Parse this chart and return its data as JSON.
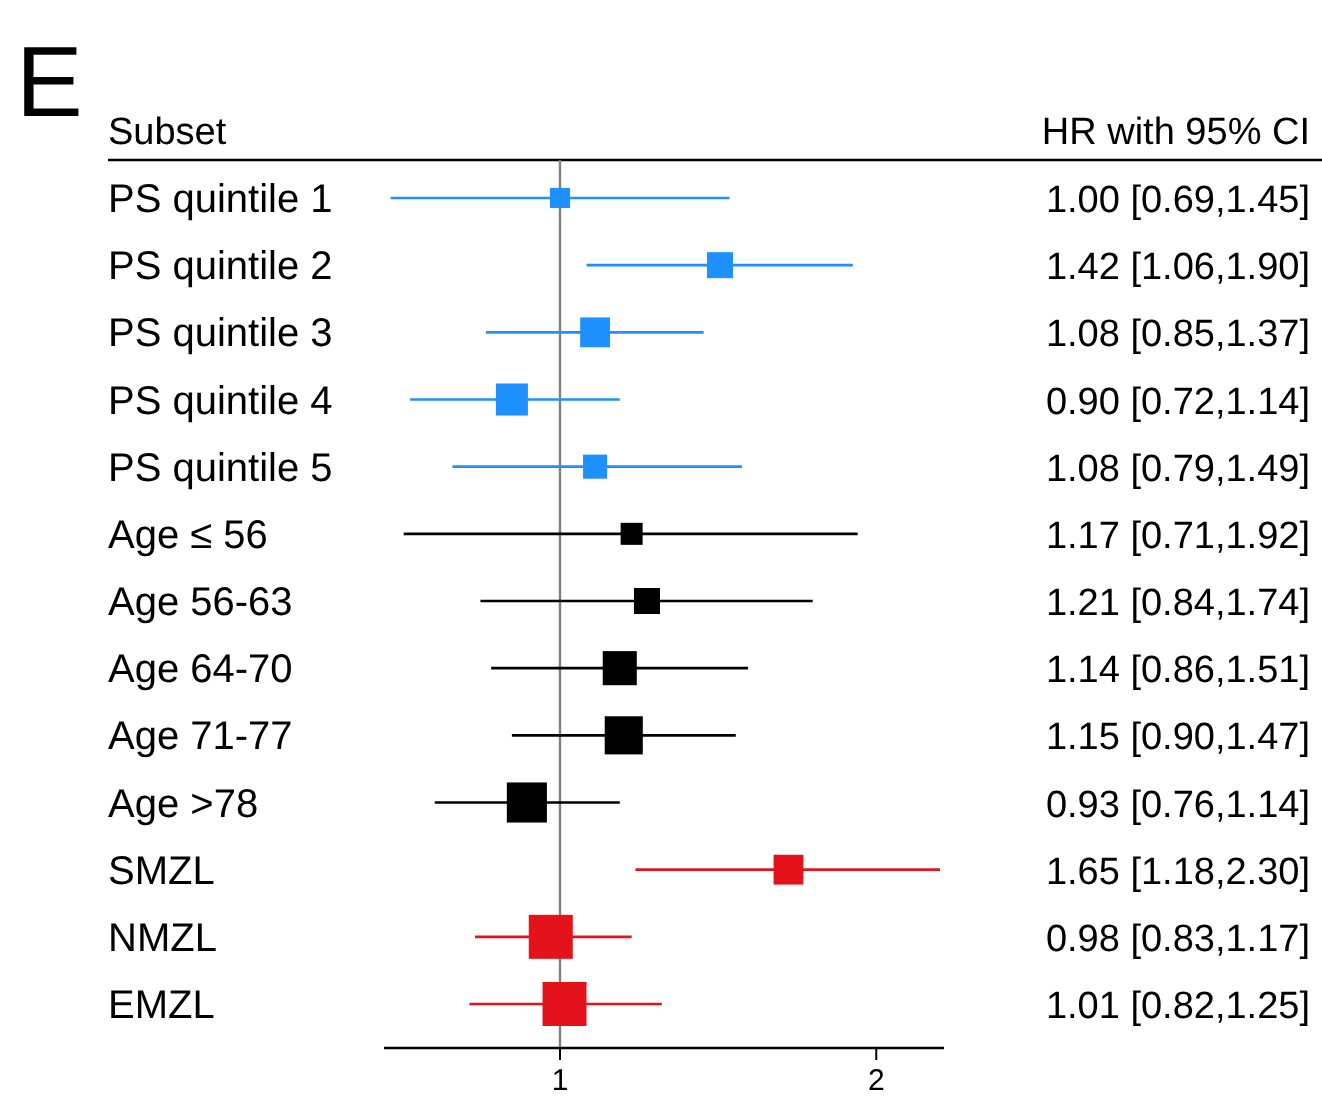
{
  "chart_data": {
    "type": "bubble",
    "title": "E",
    "orientation": "horizontal",
    "marker": "square",
    "categories": [
      "PS quintile 1",
      "PS quintile 2",
      "PS quintile 3",
      "PS quintile 4",
      "PS quintile 5",
      "Age ≤ 56",
      "Age 56-63",
      "Age 64-70",
      "Age 71-77",
      "Age >78",
      "SMZL",
      "NMZL",
      "EMZL"
    ],
    "values": [
      1.0,
      1.42,
      1.08,
      0.9,
      1.08,
      1.17,
      1.21,
      1.14,
      1.15,
      0.93,
      1.65,
      0.98,
      1.01
    ],
    "errors": [
      [
        0.69,
        1.45
      ],
      [
        1.06,
        1.9
      ],
      [
        0.85,
        1.37
      ],
      [
        0.72,
        1.14
      ],
      [
        0.79,
        1.49
      ],
      [
        0.71,
        1.92
      ],
      [
        0.84,
        1.74
      ],
      [
        0.86,
        1.51
      ],
      [
        0.9,
        1.47
      ],
      [
        0.76,
        1.14
      ],
      [
        1.18,
        2.3
      ],
      [
        0.83,
        1.17
      ],
      [
        0.82,
        1.25
      ]
    ],
    "sizes": [
      0.21,
      0.35,
      0.46,
      0.53,
      0.3,
      0.25,
      0.35,
      0.6,
      0.75,
      0.83,
      0.46,
      1,
      1
    ],
    "colors": [
      "#1e90ff",
      "#1e90ff",
      "#1e90ff",
      "#1e90ff",
      "#1e90ff",
      "#000000",
      "#000000",
      "#000000",
      "#000000",
      "#000000",
      "#e3121b",
      "#e3121b",
      "#e3121b"
    ],
    "value_labels": [
      "1.00 [0.69,1.45]",
      "1.42 [1.06,1.90]",
      "1.08 [0.85,1.37]",
      "0.90 [0.72,1.14]",
      "1.08 [0.79,1.49]",
      "1.17 [0.71,1.92]",
      "1.21 [0.84,1.74]",
      "1.14 [0.86,1.51]",
      "1.15 [0.90,1.47]",
      "0.93 [0.76,1.14]",
      "1.65 [1.18,2.30]",
      "0.98 [0.83,1.17]",
      "1.01 [0.82,1.25]"
    ],
    "xlim": [
      0.68,
      2.32
    ],
    "xticks": [
      1,
      2
    ],
    "log": "x",
    "ref_lines": [
      {
        "axis": "x",
        "value": 1,
        "color": "#808080"
      }
    ],
    "annotations": [
      "Subset",
      "HR with 95% CI"
    ]
  }
}
